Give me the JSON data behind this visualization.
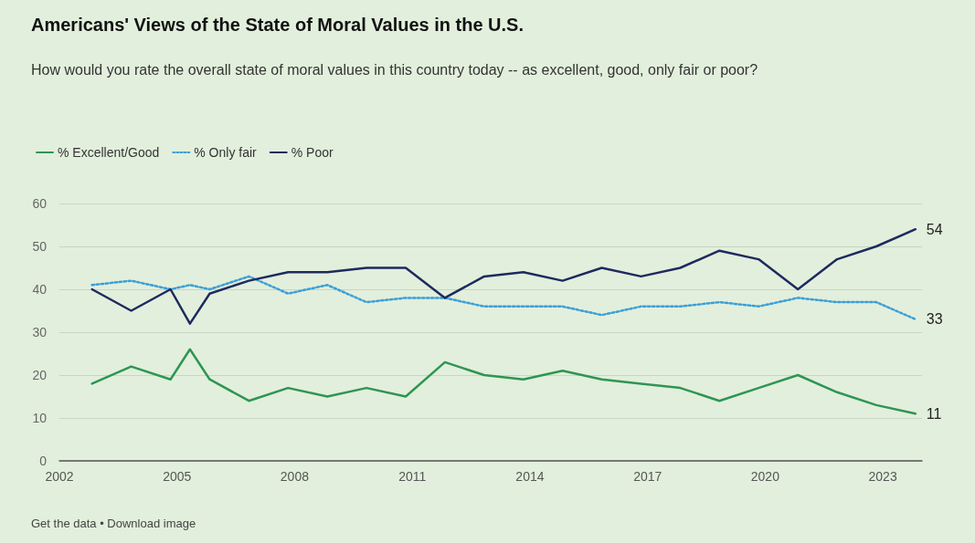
{
  "chart_data": {
    "type": "line",
    "title": "Americans' Views of the State of Moral Values in the U.S.",
    "subtitle": "How would you rate the overall state of moral values in this country today -- as excellent, good, only fair or poor?",
    "x": [
      "2002-11",
      "2003-11",
      "2004-11",
      "2005-05",
      "2005-11",
      "2006-11",
      "2007-11",
      "2008-11",
      "2009-11",
      "2010-11",
      "2011-11",
      "2012-11",
      "2013-11",
      "2014-11",
      "2015-11",
      "2016-11",
      "2017-11",
      "2018-11",
      "2019-11",
      "2020-11",
      "2021-11",
      "2022-11",
      "2023-11"
    ],
    "series": [
      {
        "name": "% Excellent/Good",
        "color": "#2e9553",
        "line_style": "solid",
        "values": [
          18,
          22,
          19,
          26,
          19,
          14,
          17,
          15,
          17,
          15,
          23,
          20,
          19,
          21,
          19,
          18,
          17,
          14,
          17,
          20,
          16,
          13,
          11
        ],
        "value_labels": [
          null,
          null,
          null,
          null,
          null,
          null,
          null,
          null,
          null,
          null,
          null,
          null,
          null,
          null,
          null,
          null,
          null,
          null,
          null,
          null,
          null,
          null,
          "11"
        ]
      },
      {
        "name": "% Only fair",
        "color": "#3b9fd8",
        "line_style": "dotted",
        "values": [
          41,
          42,
          40,
          41,
          40,
          43,
          39,
          41,
          37,
          38,
          38,
          36,
          36,
          36,
          34,
          36,
          36,
          37,
          36,
          38,
          37,
          37,
          33
        ],
        "value_labels": [
          null,
          null,
          null,
          null,
          null,
          null,
          null,
          null,
          null,
          null,
          null,
          null,
          null,
          null,
          null,
          null,
          null,
          null,
          null,
          null,
          null,
          null,
          "33"
        ]
      },
      {
        "name": "% Poor",
        "color": "#1e2a5e",
        "line_style": "solid",
        "values": [
          40,
          35,
          40,
          32,
          39,
          42,
          44,
          44,
          45,
          45,
          38,
          43,
          44,
          42,
          45,
          43,
          45,
          49,
          47,
          40,
          47,
          50,
          54
        ],
        "value_labels": [
          null,
          null,
          null,
          null,
          null,
          null,
          null,
          null,
          null,
          null,
          null,
          null,
          null,
          null,
          null,
          null,
          null,
          null,
          null,
          null,
          null,
          null,
          "54"
        ]
      }
    ],
    "xlim": [
      "2002-01",
      "2024-01"
    ],
    "xticks": [
      "2002",
      "2005",
      "2008",
      "2011",
      "2014",
      "2017",
      "2020",
      "2023"
    ],
    "ylim": [
      0,
      60
    ],
    "yticks": [
      0,
      10,
      20,
      30,
      40,
      50,
      60
    ],
    "grid": "y",
    "legend": "top left",
    "marker": "none",
    "annotations": [
      "Get the data • Download image"
    ]
  }
}
